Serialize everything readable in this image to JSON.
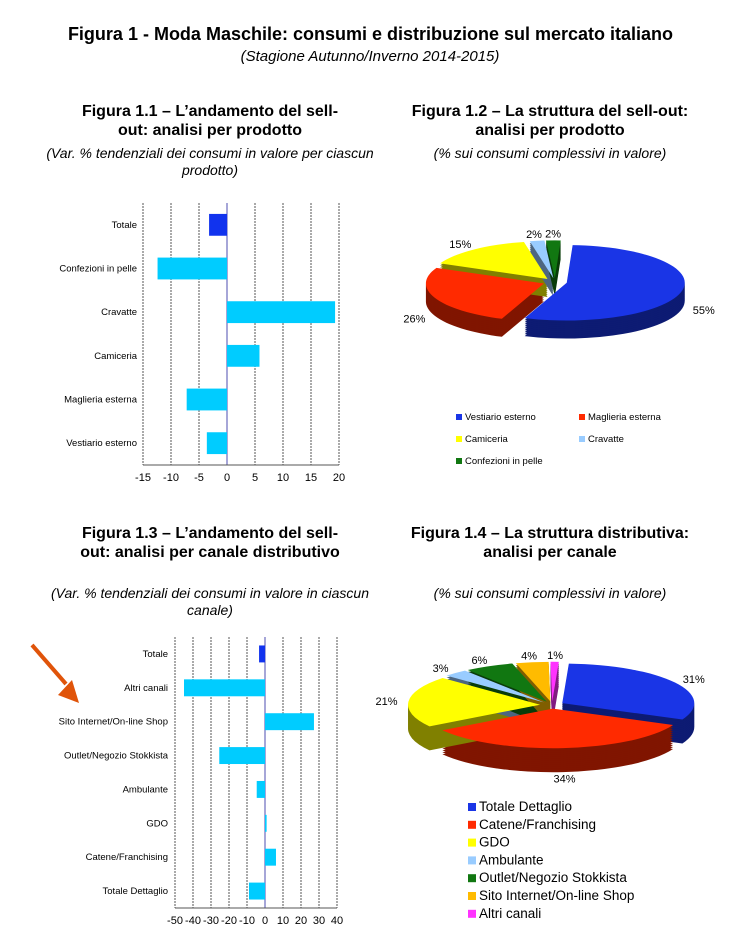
{
  "title": "Figura 1 - Moda Maschile: consumi e distribuzione sul mercato italiano",
  "subtitle": "(Stagione Autunno/Inverno 2014-2015)",
  "chart_data": [
    {
      "id": "fig11",
      "type": "bar",
      "orientation": "horizontal",
      "title": "Figura 1.1 – L’andamento del sell-out: analisi per prodotto",
      "subtitle": "(Var. % tendenziali dei consumi in valore per ciascun prodotto)",
      "categories": [
        "Totale",
        "Confezioni in pelle",
        "Cravatte",
        "Camiceria",
        "Maglieria esterna",
        "Vestiario esterno"
      ],
      "values": [
        -3.2,
        -12.4,
        19.3,
        5.8,
        -7.2,
        -3.6
      ],
      "xlim": [
        -15,
        20
      ],
      "ticks": [
        "-15",
        "-10",
        "-5",
        "0",
        "5",
        "10",
        "15",
        "20"
      ],
      "tick_step": 5,
      "grid": true,
      "colors": [
        "#1133ee",
        "#00ccff",
        "#00ccff",
        "#00ccff",
        "#00ccff",
        "#00ccff"
      ]
    },
    {
      "id": "fig12",
      "type": "pie",
      "title": "Figura 1.2 – La struttura del sell-out: analisi per prodotto",
      "subtitle": "(% sui consumi complessivi in valore)",
      "labels": [
        "Vestiario esterno",
        "Maglieria esterna",
        "Camiceria",
        "Cravatte",
        "Confezioni in pelle"
      ],
      "values": [
        55,
        26,
        15,
        2,
        2
      ],
      "value_labels": [
        "55%",
        "26%",
        "15%",
        "2%",
        "2%"
      ],
      "colors": [
        "#1a35e6",
        "#ff2a00",
        "#ffff00",
        "#99ccff",
        "#117711"
      ],
      "legend": "bottom"
    },
    {
      "id": "fig13",
      "type": "bar",
      "orientation": "horizontal",
      "title": "Figura 1.3 – L’andamento del sell-out: analisi  per canale distributivo",
      "subtitle": "(Var. % tendenziali dei consumi in valore in ciascun canale)",
      "categories": [
        "Totale",
        "Altri canali",
        "Sito Internet/On-line Shop",
        "Outlet/Negozio Stokkista",
        "Ambulante",
        "GDO",
        "Catene/Franchising",
        "Totale Dettaglio"
      ],
      "values": [
        -3.3,
        -45,
        27.2,
        -25.4,
        -4.6,
        0.9,
        6.1,
        -8.9
      ],
      "xlim": [
        -50,
        40
      ],
      "ticks": [
        "-50",
        "-40",
        "-30",
        "-20",
        "-10",
        "0",
        "10",
        "20",
        "30",
        "40"
      ],
      "tick_step": 10,
      "grid": true,
      "colors": [
        "#1133ee",
        "#00ccff",
        "#00ccff",
        "#00ccff",
        "#00ccff",
        "#00ccff",
        "#00ccff",
        "#00ccff"
      ]
    },
    {
      "id": "fig14",
      "type": "pie",
      "title": "Figura 1.4 – La struttura distributiva: analisi per canale",
      "subtitle": "(% sui consumi complessivi in valore)",
      "labels": [
        "Totale Dettaglio",
        "Catene/Franchising",
        "GDO",
        "Ambulante",
        "Outlet/Negozio Stokkista",
        "Sito Internet/On-line Shop",
        "Altri canali"
      ],
      "values": [
        31,
        34,
        21,
        3,
        6,
        4,
        1
      ],
      "value_labels": [
        "31%",
        "34%",
        "21%",
        "3%",
        "6%",
        "4%",
        "1%"
      ],
      "colors": [
        "#1a35e6",
        "#ff2a00",
        "#ffff00",
        "#99ccff",
        "#117711",
        "#ffbb00",
        "#ff33ff"
      ],
      "legend": "bottom"
    }
  ]
}
